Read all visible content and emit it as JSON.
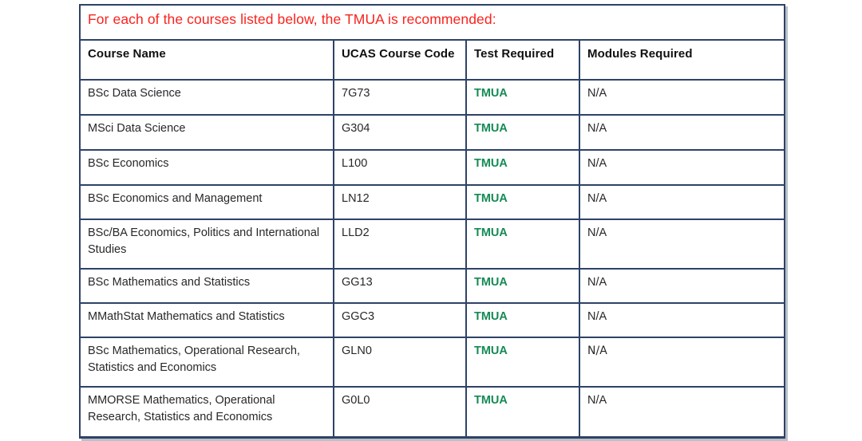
{
  "title": {
    "text": "For each of the courses listed below, the TMUA is recommended:"
  },
  "colors": {
    "title_red": "#f8231e",
    "tmua_green": "#148a54",
    "border_navy": "#2e4266",
    "body_text": "#282828"
  },
  "table": {
    "headers": [
      "Course Name",
      "UCAS Course Code",
      "Test Required",
      "Modules Required"
    ],
    "rows": [
      {
        "course": "BSc Data Science",
        "code": "7G73",
        "test": "TMUA",
        "modules": "N/A"
      },
      {
        "course": "MSci Data Science",
        "code": "G304",
        "test": "TMUA",
        "modules": "N/A"
      },
      {
        "course": "BSc Economics",
        "code": "L100",
        "test": "TMUA",
        "modules": "N/A"
      },
      {
        "course": "BSc Economics and Management",
        "code": "LN12",
        "test": "TMUA",
        "modules": "N/A"
      },
      {
        "course": "BSc/BA Economics, Politics and International Studies",
        "code": "LLD2",
        "test": "TMUA",
        "modules": "N/A"
      },
      {
        "course": "BSc Mathematics and Statistics",
        "code": "GG13",
        "test": "TMUA",
        "modules": "N/A"
      },
      {
        "course": "MMathStat Mathematics and Statistics",
        "code": "GGC3",
        "test": "TMUA",
        "modules": "N/A"
      },
      {
        "course": "BSc Mathematics, Operational Research, Statistics and Economics",
        "code": "GLN0",
        "test": "TMUA",
        "modules": "N/A"
      },
      {
        "course": "MMORSE Mathematics, Operational Research, Statistics and Economics",
        "code": "G0L0",
        "test": "TMUA",
        "modules": "N/A"
      }
    ]
  }
}
